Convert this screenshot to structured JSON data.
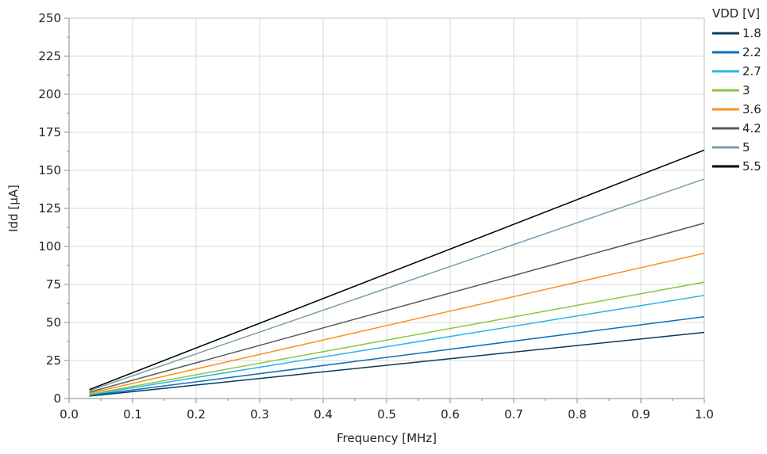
{
  "chart_data": {
    "type": "line",
    "title": "",
    "xlabel": "Frequency [MHz]",
    "ylabel": "Idd [µA]",
    "xlim": [
      0.0,
      1.0
    ],
    "ylim": [
      0,
      250
    ],
    "x_ticks": [
      "0.0",
      "0.1",
      "0.2",
      "0.3",
      "0.4",
      "0.5",
      "0.6",
      "0.7",
      "0.8",
      "0.9",
      "1.0"
    ],
    "y_ticks": [
      "0",
      "25",
      "50",
      "75",
      "100",
      "125",
      "150",
      "175",
      "200",
      "225",
      "250"
    ],
    "grid": true,
    "legend": {
      "title": "VDD [V]",
      "placement": "right"
    },
    "series": [
      {
        "name": "1.8",
        "color": "#0b3a5a",
        "x": [
          0.032,
          1.0
        ],
        "y": [
          1.6,
          43.5
        ]
      },
      {
        "name": "2.2",
        "color": "#1070b8",
        "x": [
          0.032,
          1.0
        ],
        "y": [
          2.0,
          53.8
        ]
      },
      {
        "name": "2.7",
        "color": "#2bb4e6",
        "x": [
          0.032,
          1.0
        ],
        "y": [
          2.5,
          67.8
        ]
      },
      {
        "name": "3",
        "color": "#8cc63f",
        "x": [
          0.032,
          1.0
        ],
        "y": [
          2.8,
          76.5
        ]
      },
      {
        "name": "3.6",
        "color": "#f7941d",
        "x": [
          0.032,
          1.0
        ],
        "y": [
          3.5,
          95.5
        ]
      },
      {
        "name": "4.2",
        "color": "#595959",
        "x": [
          0.032,
          1.0
        ],
        "y": [
          4.2,
          115.3
        ]
      },
      {
        "name": "5",
        "color": "#7a9cb0",
        "x": [
          0.032,
          1.0
        ],
        "y": [
          5.2,
          144.3
        ]
      },
      {
        "name": "5.5",
        "color": "#000000",
        "x": [
          0.032,
          1.0
        ],
        "y": [
          5.9,
          163.3
        ]
      }
    ]
  }
}
